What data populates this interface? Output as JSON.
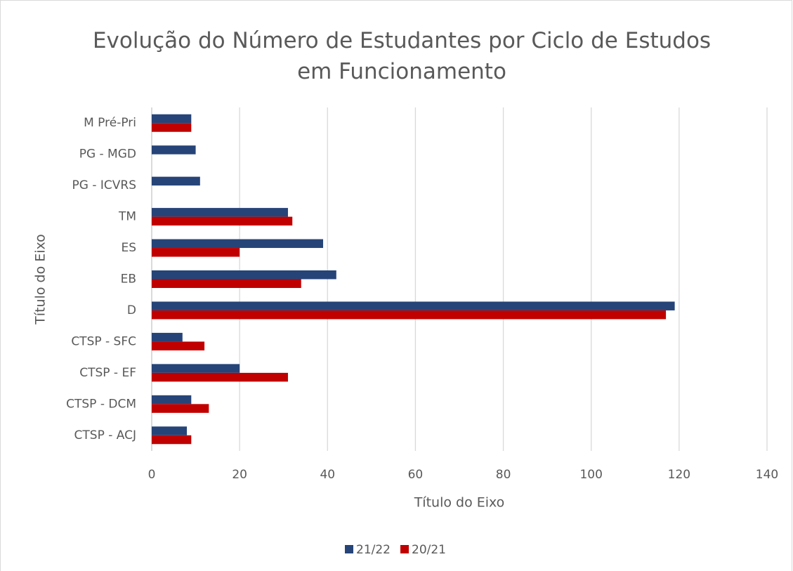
{
  "chart_data": {
    "type": "bar",
    "orientation": "horizontal",
    "title": "Evolução do Número de Estudantes por Ciclo de Estudos em Funcionamento",
    "xlabel": "Título do Eixo",
    "ylabel": "Título do Eixo",
    "categories": [
      "CTSP - ACJ",
      "CTSP - DCM",
      "CTSP - EF",
      "CTSP - SFC",
      "D",
      "EB",
      "ES",
      "TM",
      "PG - ICVRS",
      "PG - MGD",
      "M Pré-Pri"
    ],
    "series": [
      {
        "name": "21/22",
        "color": "#264478",
        "values": [
          8,
          9,
          20,
          7,
          119,
          42,
          39,
          31,
          11,
          10,
          9
        ]
      },
      {
        "name": "20/21",
        "color": "#c00000",
        "values": [
          9,
          13,
          31,
          12,
          117,
          34,
          20,
          32,
          null,
          null,
          9
        ]
      }
    ],
    "xlim": [
      0,
      140
    ],
    "xticks": [
      0,
      20,
      40,
      60,
      80,
      100,
      120,
      140
    ],
    "grid": true,
    "legend": "bottom"
  }
}
